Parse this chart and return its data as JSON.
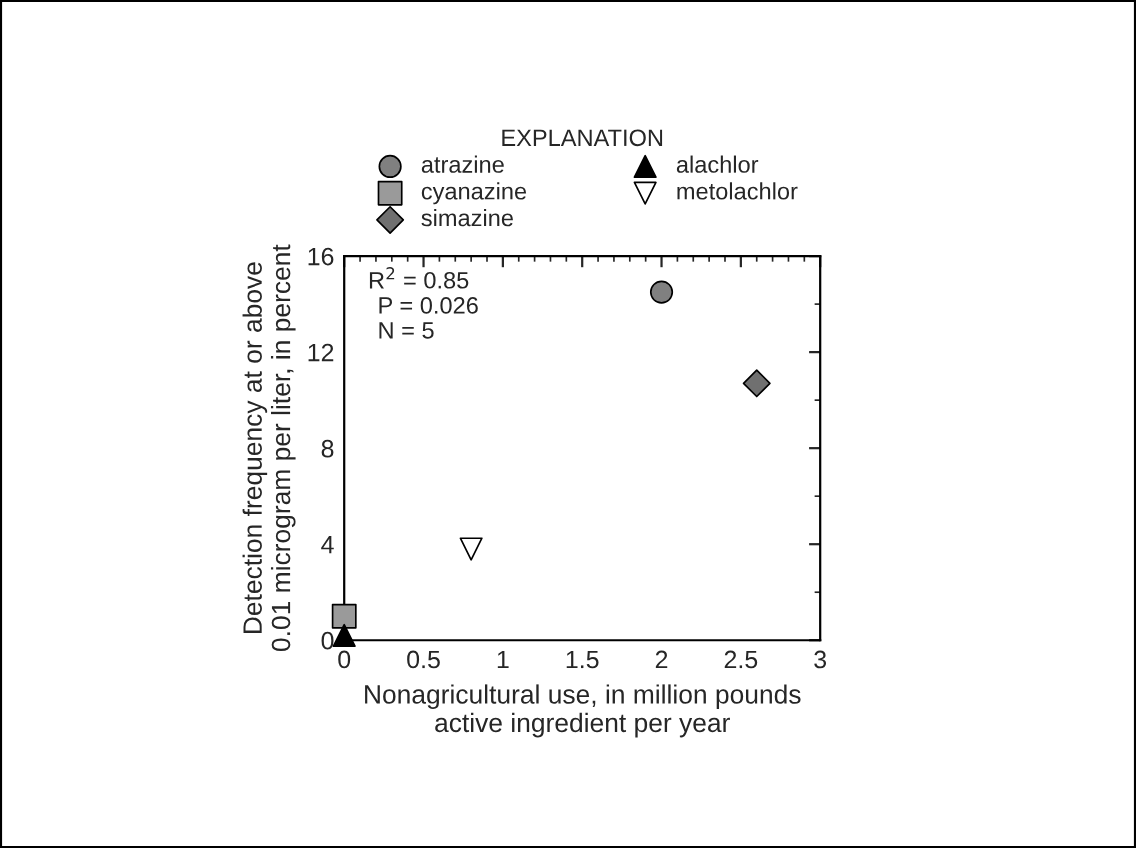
{
  "chart_data": {
    "type": "scatter",
    "xlabel": "Nonagricultural use, in million pounds\nactive ingredient per year",
    "ylabel": "Detection frequency at or above\n0.01 microgram per liter, in percent",
    "legend_title": "EXPLANATION",
    "legend": "top",
    "series": [
      {
        "name": "atrazine",
        "color": "#808080",
        "marker": "circle",
        "x": [
          2.0
        ],
        "values": [
          14.5
        ]
      },
      {
        "name": "cyanazine",
        "color": "#9a9a9a",
        "marker": "square",
        "x": [
          0
        ],
        "values": [
          1.0
        ]
      },
      {
        "name": "simazine",
        "color": "#707070",
        "marker": "diamond",
        "x": [
          2.6
        ],
        "values": [
          10.7
        ]
      },
      {
        "name": "alachlor",
        "color": "#000000",
        "marker": "triangle",
        "x": [
          0
        ],
        "values": [
          0.2
        ]
      },
      {
        "name": "metolachlor",
        "color": "#ffffff",
        "marker": "triangle_down",
        "x": [
          0.8
        ],
        "values": [
          3.8
        ]
      }
    ],
    "xlim": [
      0,
      3
    ],
    "xticks": [
      0,
      0.5,
      1,
      1.5,
      2,
      2.5,
      3
    ],
    "ylim": [
      0,
      16
    ],
    "yticks": [
      0,
      4,
      8,
      12,
      16
    ],
    "grid": false,
    "annotations": [
      "R$^{2}$ = 0.85",
      "P = 0.026",
      "N = 5"
    ]
  }
}
